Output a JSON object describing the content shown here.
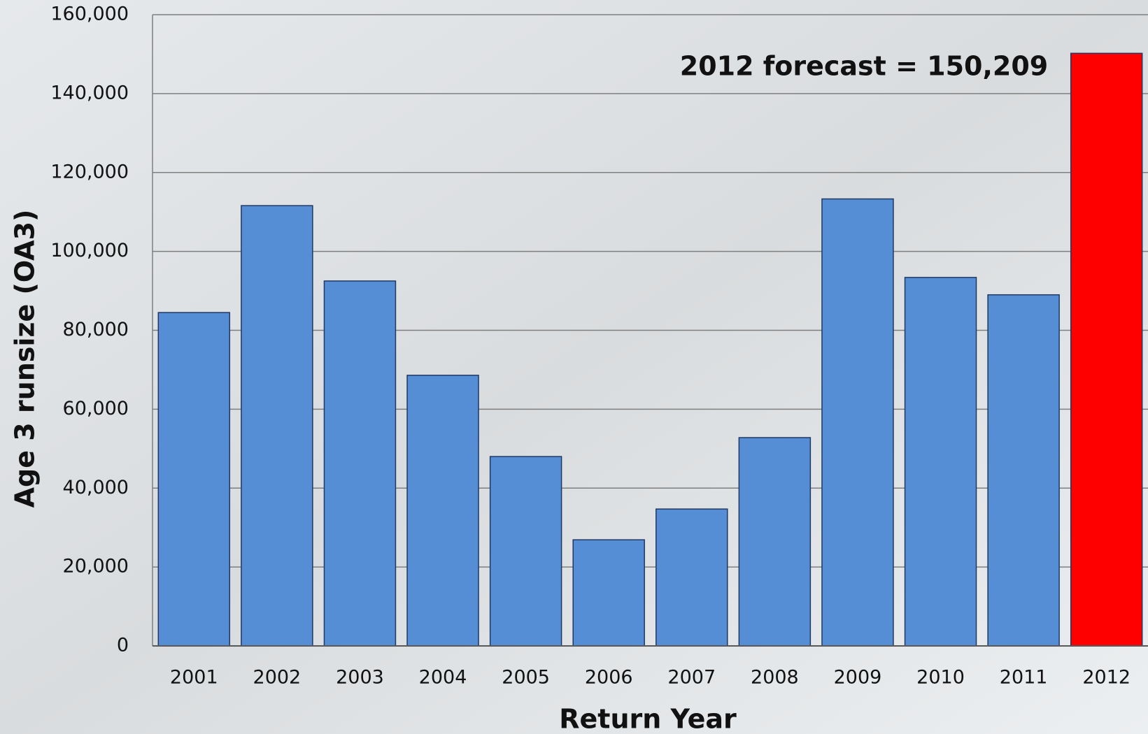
{
  "chart_data": {
    "type": "bar",
    "x_label": "Return Year",
    "y_label": "Age 3 runsize (OA3)",
    "annotation": "2012 forecast = 150,209",
    "categories": [
      "2001",
      "2002",
      "2003",
      "2004",
      "2005",
      "2006",
      "2007",
      "2008",
      "2009",
      "2010",
      "2011",
      "2012"
    ],
    "values": [
      84500,
      111600,
      92500,
      68600,
      48000,
      26900,
      34700,
      52800,
      113300,
      93400,
      89000,
      150209
    ],
    "colors": [
      "#558ed5",
      "#558ed5",
      "#558ed5",
      "#558ed5",
      "#558ed5",
      "#558ed5",
      "#558ed5",
      "#558ed5",
      "#558ed5",
      "#558ed5",
      "#558ed5",
      "#ff0000"
    ],
    "ylim": [
      0,
      160000
    ],
    "yticks": [
      0,
      {
        "value": 20000,
        "label": "20,000"
      },
      {
        "value": 40000,
        "label": "40,000"
      },
      {
        "value": 60000,
        "label": "60,000"
      },
      {
        "value": 80000,
        "label": "80,000"
      },
      {
        "value": 100000,
        "label": "100,000"
      },
      {
        "value": 120000,
        "label": "120,000"
      },
      {
        "value": 140000,
        "label": "140,000"
      },
      {
        "value": 160000,
        "label": "160,000"
      }
    ],
    "grid": true
  }
}
